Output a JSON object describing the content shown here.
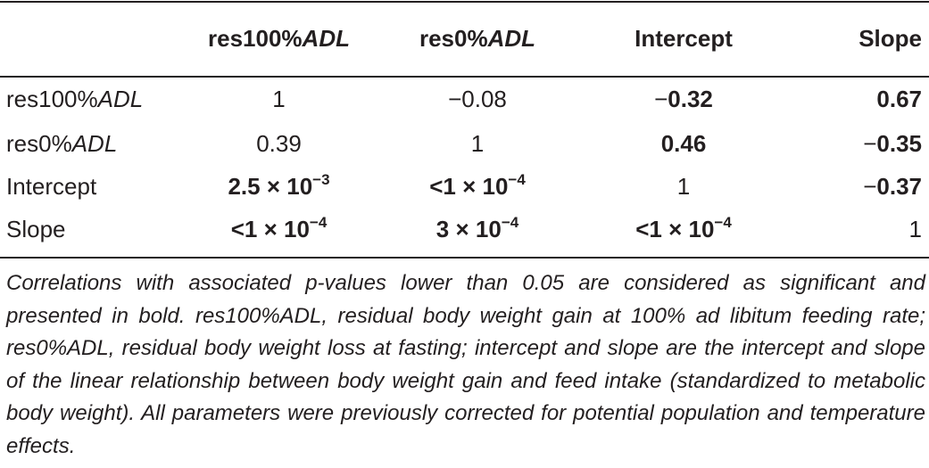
{
  "table": {
    "headers": [
      {
        "key": "row",
        "text": ""
      },
      {
        "key": "res100",
        "prefix": "res100%",
        "italic": "ADL"
      },
      {
        "key": "res0",
        "prefix": "res0%",
        "italic": "ADL"
      },
      {
        "key": "intercept",
        "prefix": "Intercept",
        "italic": ""
      },
      {
        "key": "slope",
        "prefix": "Slope",
        "italic": ""
      }
    ],
    "rows": [
      {
        "label_prefix": "res100%",
        "label_italic": "ADL",
        "cells": [
          {
            "text": "1",
            "bold": false
          },
          {
            "text": "−0.08",
            "bold": false
          },
          {
            "sign": "−",
            "text": "0.32",
            "bold": true
          },
          {
            "text": "0.67",
            "bold": true
          }
        ]
      },
      {
        "label_prefix": "res0%",
        "label_italic": "ADL",
        "cells": [
          {
            "text": "0.39",
            "bold": false
          },
          {
            "text": "1",
            "bold": false
          },
          {
            "text": "0.46",
            "bold": true
          },
          {
            "sign": "−",
            "text": "0.35",
            "bold": true
          }
        ]
      },
      {
        "label_prefix": "Intercept",
        "label_italic": "",
        "cells": [
          {
            "text": "2.5 × 10",
            "sup": "−3",
            "bold": true
          },
          {
            "text": "<1 × 10",
            "sup": "−4",
            "bold": true
          },
          {
            "text": "1",
            "bold": false
          },
          {
            "sign": "−",
            "text": "0.37",
            "bold": true
          }
        ]
      },
      {
        "label_prefix": "Slope",
        "label_italic": "",
        "cells": [
          {
            "text": "<1 × 10",
            "sup": "−4",
            "bold": true
          },
          {
            "text": "3 × 10",
            "sup": "−4",
            "bold": true
          },
          {
            "text": "<1 × 10",
            "sup": "−4",
            "bold": true
          },
          {
            "text": "1",
            "bold": false
          }
        ]
      }
    ]
  },
  "footnote": "Correlations with associated p-values lower than 0.05 are considered as significant and presented in bold. res100%ADL, residual body weight gain at 100% ad libitum feeding rate; res0%ADL, residual body weight loss at fasting; intercept and slope are the intercept and slope of the linear relationship between body weight gain and feed intake (standardized to metabolic body weight). All parameters were previously corrected for potential population and temperature effects."
}
